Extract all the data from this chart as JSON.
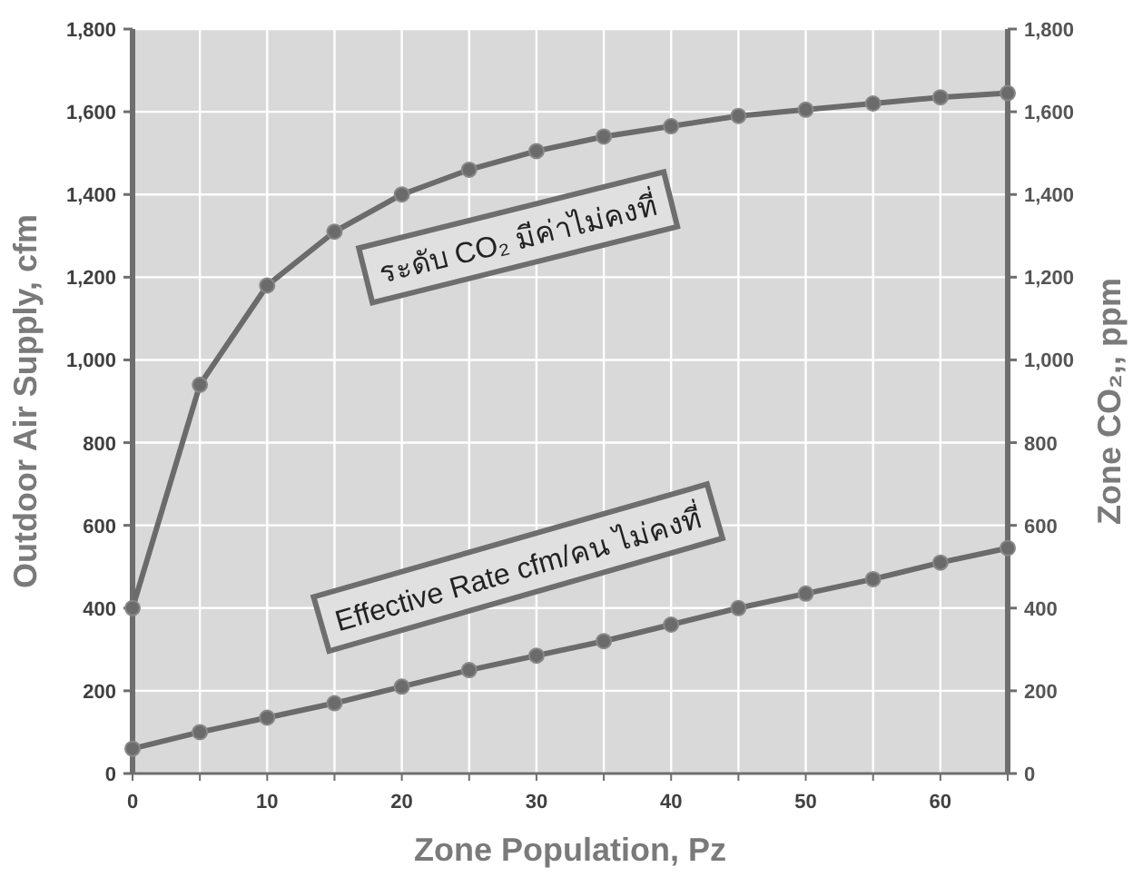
{
  "chart_data": {
    "type": "line",
    "xlabel": "Zone Population, Pz",
    "ylabel": "Outdoor Air Supply, cfm",
    "y2label": "Zone CO₂,, ppm",
    "x": [
      0,
      5,
      10,
      15,
      20,
      25,
      30,
      35,
      40,
      45,
      50,
      55,
      60,
      65
    ],
    "series": [
      {
        "name": "ระดับ CO₂ มีค่าไม่คงที่",
        "color": "#6b6b6b",
        "values": [
          400,
          940,
          1180,
          1310,
          1400,
          1460,
          1505,
          1540,
          1565,
          1590,
          1605,
          1620,
          1635,
          1645
        ]
      },
      {
        "name": "Effective Rate cfm/คน ไม่คงที่",
        "color": "#6b6b6b",
        "values": [
          60,
          100,
          135,
          170,
          210,
          250,
          285,
          320,
          360,
          400,
          435,
          470,
          510,
          545
        ]
      }
    ],
    "xlim": [
      0,
      65
    ],
    "xticks": [
      0,
      {
        "value": 5,
        "label": null
      },
      10,
      {
        "value": 15,
        "label": null
      },
      20,
      {
        "value": 25,
        "label": null
      },
      30,
      {
        "value": 35,
        "label": null
      },
      40,
      {
        "value": 45,
        "label": null
      },
      50,
      {
        "value": 55,
        "label": null
      },
      60,
      {
        "value": 65,
        "label": null
      }
    ],
    "ylim": [
      0,
      1800
    ],
    "yticks": [
      0,
      200,
      400,
      600,
      800,
      {
        "value": 1000,
        "label": "1,000"
      },
      {
        "value": 1200,
        "label": "1,200"
      },
      {
        "value": 1400,
        "label": "1,400"
      },
      {
        "value": 1600,
        "label": "1,600"
      },
      {
        "value": 1800,
        "label": "1,800"
      }
    ],
    "y2lim": [
      0,
      1800
    ],
    "y2ticks": [
      0,
      200,
      400,
      600,
      800,
      {
        "value": 1000,
        "label": "1,000"
      },
      {
        "value": 1200,
        "label": "1,200"
      },
      {
        "value": 1400,
        "label": "1,400"
      },
      {
        "value": 1600,
        "label": "1,600"
      },
      {
        "value": 1800,
        "label": "1,800"
      }
    ],
    "grid": true,
    "marker": "circle",
    "line_style": "solid"
  }
}
